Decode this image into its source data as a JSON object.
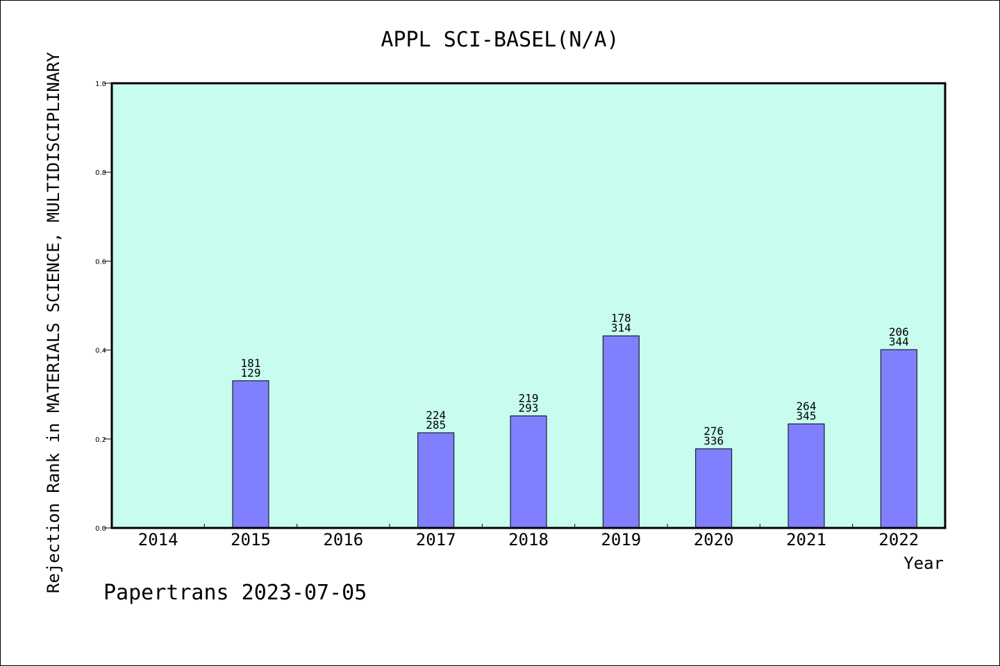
{
  "chart_data": {
    "type": "bar",
    "title": "APPL SCI-BASEL(N/A)",
    "xlabel": "Year",
    "ylabel": "Rejection Rank in MATERIALS SCIENCE, MULTIDISCIPLINARY",
    "categories": [
      "2014",
      "2015",
      "2016",
      "2017",
      "2018",
      "2019",
      "2020",
      "2021",
      "2022"
    ],
    "values": [
      null,
      0.331,
      null,
      0.214,
      0.252,
      0.432,
      0.178,
      0.234,
      0.401
    ],
    "labels_top": [
      "",
      "181",
      "",
      "224",
      "219",
      "178",
      "276",
      "264",
      "206"
    ],
    "labels_bottom": [
      "",
      "129",
      "",
      "285",
      "293",
      "314",
      "336",
      "345",
      "344"
    ],
    "ylim": [
      0,
      1.0
    ],
    "yticks": [
      "0.0",
      "0.2",
      "0.4",
      "0.6",
      "0.8",
      "1.0"
    ],
    "grid": false,
    "colors": {
      "plot_bg": "#c8fcee",
      "bar": "#8080ff",
      "bar_edge": "#000000"
    }
  },
  "footer": "Papertrans 2023-07-05"
}
